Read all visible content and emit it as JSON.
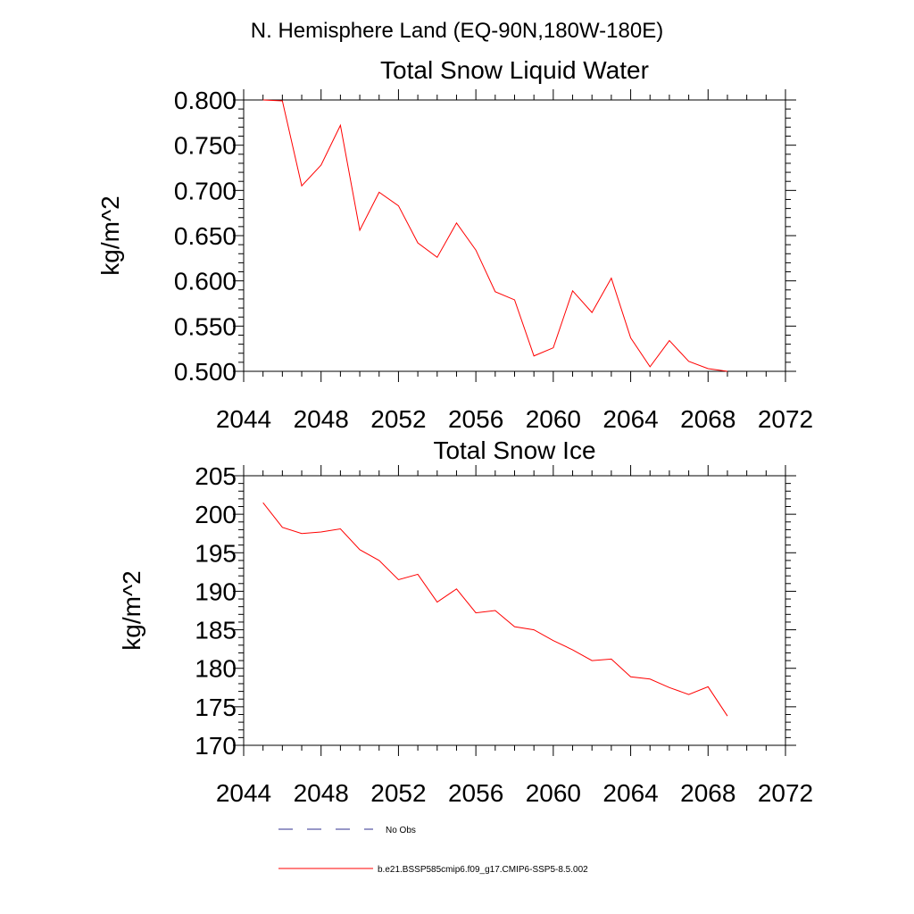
{
  "figure": {
    "title": "N. Hemisphere Land (EQ-90N,180W-180E)"
  },
  "legend": {
    "items": [
      {
        "label": "No Obs",
        "color": "#2f2f8f",
        "style": "dashed"
      },
      {
        "label": "b.e21.BSSP585cmip6.f09_g17.CMIP6-SSP5-8.5.002",
        "color": "#ff0000",
        "style": "solid"
      }
    ]
  },
  "chart_data": [
    {
      "type": "line",
      "title": "Total Snow Liquid Water",
      "xlabel": "",
      "ylabel": "kg/m^2",
      "xlim": [
        2044,
        2072
      ],
      "ylim": [
        0.5,
        0.8
      ],
      "xticks": [
        "2044",
        "2048",
        "2052",
        "2056",
        "2060",
        "2064",
        "2068",
        "2072"
      ],
      "yticks": [
        "0.500",
        "0.550",
        "0.600",
        "0.650",
        "0.700",
        "0.750",
        "0.800"
      ],
      "grid": false,
      "x": [
        2045,
        2046,
        2047,
        2048,
        2049,
        2050,
        2051,
        2052,
        2053,
        2054,
        2055,
        2056,
        2057,
        2058,
        2059,
        2060,
        2061,
        2062,
        2063,
        2064,
        2065,
        2066,
        2067,
        2068,
        2069
      ],
      "series": [
        {
          "color": "#ff0000",
          "values": [
            0.8,
            0.799,
            0.705,
            0.728,
            0.772,
            0.656,
            0.698,
            0.683,
            0.642,
            0.626,
            0.664,
            0.634,
            0.588,
            0.579,
            0.517,
            0.526,
            0.589,
            0.565,
            0.603,
            0.537,
            0.505,
            0.534,
            0.511,
            0.503,
            0.5
          ]
        }
      ]
    },
    {
      "type": "line",
      "title": "Total Snow Ice",
      "xlabel": "",
      "ylabel": "kg/m^2",
      "xlim": [
        2044,
        2072
      ],
      "ylim": [
        170,
        205
      ],
      "xticks": [
        "2044",
        "2048",
        "2052",
        "2056",
        "2060",
        "2064",
        "2068",
        "2072"
      ],
      "yticks": [
        "170",
        "175",
        "180",
        "185",
        "190",
        "195",
        "200",
        "205"
      ],
      "grid": false,
      "x": [
        2045,
        2046,
        2047,
        2048,
        2049,
        2050,
        2051,
        2052,
        2053,
        2054,
        2055,
        2056,
        2057,
        2058,
        2059,
        2060,
        2061,
        2062,
        2063,
        2064,
        2065,
        2066,
        2067,
        2068,
        2069
      ],
      "series": [
        {
          "color": "#ff0000",
          "values": [
            201.5,
            198.3,
            197.5,
            197.7,
            198.1,
            195.4,
            194.0,
            191.5,
            192.2,
            188.6,
            190.3,
            187.2,
            187.5,
            185.4,
            185.0,
            183.6,
            182.4,
            181.0,
            181.2,
            178.9,
            178.6,
            177.5,
            176.6,
            177.6,
            173.8
          ]
        }
      ]
    }
  ]
}
